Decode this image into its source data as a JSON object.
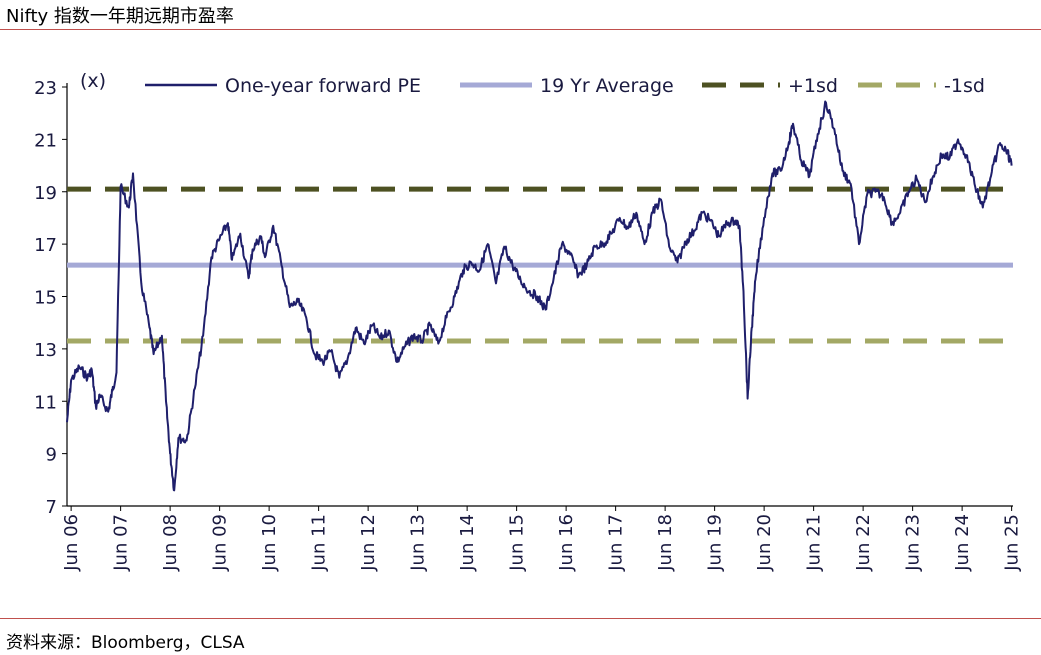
{
  "title": "Nifty 指数一年期远期市盈率",
  "source": "资料来源：Bloomberg，CLSA",
  "chart_data": {
    "type": "line",
    "unit_label": "(x)",
    "ylim": [
      7,
      23
    ],
    "y_ticks": [
      "23",
      "21",
      "19",
      "17",
      "15",
      "13",
      "11",
      "9",
      "7"
    ],
    "x_ticks": [
      "Jun 06",
      "Jun 07",
      "Jun 08",
      "Jun 09",
      "Jun 10",
      "Jun 11",
      "Jun 12",
      "Jun 13",
      "Jun 14",
      "Jun 15",
      "Jun 16",
      "Jun 17",
      "Jun 18",
      "Jun 19",
      "Jun 20",
      "Jun 21",
      "Jun 22",
      "Jun 23",
      "Jun 24",
      "Jun 25"
    ],
    "legend_placement": "top",
    "series": [
      {
        "name": "One-year forward PE",
        "color": "#1f1f6b",
        "points": [
          [
            "2006-06",
            10.2
          ],
          [
            "2006-07",
            11.8
          ],
          [
            "2006-09",
            12.3
          ],
          [
            "2006-11",
            11.9
          ],
          [
            "2006-12",
            12.2
          ],
          [
            "2007-01",
            10.8
          ],
          [
            "2007-02",
            11.2
          ],
          [
            "2007-04",
            10.6
          ],
          [
            "2007-05",
            11.4
          ],
          [
            "2007-06",
            12.1
          ],
          [
            "2007-07",
            19.2
          ],
          [
            "2007-09",
            18.4
          ],
          [
            "2007-10",
            19.7
          ],
          [
            "2007-12",
            15.5
          ],
          [
            "2008-02",
            13.8
          ],
          [
            "2008-03",
            12.8
          ],
          [
            "2008-05",
            13.5
          ],
          [
            "2008-06",
            11.0
          ],
          [
            "2008-07",
            9.0
          ],
          [
            "2008-08",
            7.6
          ],
          [
            "2008-09",
            9.6
          ],
          [
            "2008-11",
            9.5
          ],
          [
            "2009-01",
            11.5
          ],
          [
            "2009-03",
            13.5
          ],
          [
            "2009-05",
            16.5
          ],
          [
            "2009-07",
            17.2
          ],
          [
            "2009-09",
            17.8
          ],
          [
            "2009-10",
            16.4
          ],
          [
            "2009-12",
            17.4
          ],
          [
            "2010-02",
            15.7
          ],
          [
            "2010-03",
            16.8
          ],
          [
            "2010-05",
            17.3
          ],
          [
            "2010-06",
            16.5
          ],
          [
            "2010-08",
            17.7
          ],
          [
            "2010-10",
            16.2
          ],
          [
            "2010-12",
            14.6
          ],
          [
            "2011-02",
            14.8
          ],
          [
            "2011-04",
            14.2
          ],
          [
            "2011-06",
            12.8
          ],
          [
            "2011-08",
            12.5
          ],
          [
            "2011-10",
            12.9
          ],
          [
            "2011-12",
            11.9
          ],
          [
            "2012-02",
            12.6
          ],
          [
            "2012-04",
            13.8
          ],
          [
            "2012-06",
            13.2
          ],
          [
            "2012-08",
            13.9
          ],
          [
            "2012-10",
            13.4
          ],
          [
            "2012-12",
            13.7
          ],
          [
            "2013-02",
            12.5
          ],
          [
            "2013-04",
            13.1
          ],
          [
            "2013-06",
            13.5
          ],
          [
            "2013-08",
            13.3
          ],
          [
            "2013-10",
            13.9
          ],
          [
            "2013-12",
            13.2
          ],
          [
            "2014-02",
            14.2
          ],
          [
            "2014-04",
            15.0
          ],
          [
            "2014-06",
            16.0
          ],
          [
            "2014-08",
            16.3
          ],
          [
            "2014-10",
            16.0
          ],
          [
            "2014-12",
            17.0
          ],
          [
            "2015-02",
            15.5
          ],
          [
            "2015-04",
            16.9
          ],
          [
            "2015-06",
            16.2
          ],
          [
            "2015-08",
            15.6
          ],
          [
            "2015-10",
            15.2
          ],
          [
            "2015-12",
            15.0
          ],
          [
            "2016-02",
            14.5
          ],
          [
            "2016-04",
            15.7
          ],
          [
            "2016-06",
            17.0
          ],
          [
            "2016-08",
            16.6
          ],
          [
            "2016-10",
            15.8
          ],
          [
            "2016-12",
            16.2
          ],
          [
            "2017-02",
            16.9
          ],
          [
            "2017-04",
            17.0
          ],
          [
            "2017-06",
            17.4
          ],
          [
            "2017-08",
            18.0
          ],
          [
            "2017-10",
            17.6
          ],
          [
            "2017-12",
            18.2
          ],
          [
            "2018-02",
            17.0
          ],
          [
            "2018-04",
            18.2
          ],
          [
            "2018-06",
            18.7
          ],
          [
            "2018-08",
            16.9
          ],
          [
            "2018-10",
            16.3
          ],
          [
            "2018-12",
            17.1
          ],
          [
            "2019-02",
            17.5
          ],
          [
            "2019-04",
            18.2
          ],
          [
            "2019-06",
            17.9
          ],
          [
            "2019-08",
            17.3
          ],
          [
            "2019-10",
            17.8
          ],
          [
            "2019-12",
            17.9
          ],
          [
            "2020-01",
            17.7
          ],
          [
            "2020-02",
            15.2
          ],
          [
            "2020-03",
            11.1
          ],
          [
            "2020-04",
            13.8
          ],
          [
            "2020-05",
            15.8
          ],
          [
            "2020-07",
            18.0
          ],
          [
            "2020-09",
            19.7
          ],
          [
            "2020-11",
            19.8
          ],
          [
            "2021-01",
            20.9
          ],
          [
            "2021-02",
            21.6
          ],
          [
            "2021-04",
            20.2
          ],
          [
            "2021-06",
            19.6
          ],
          [
            "2021-08",
            21.2
          ],
          [
            "2021-10",
            22.4
          ],
          [
            "2021-12",
            21.4
          ],
          [
            "2022-02",
            19.8
          ],
          [
            "2022-04",
            19.3
          ],
          [
            "2022-06",
            17.0
          ],
          [
            "2022-08",
            18.9
          ],
          [
            "2022-10",
            19.0
          ],
          [
            "2022-12",
            18.8
          ],
          [
            "2023-02",
            17.8
          ],
          [
            "2023-04",
            18.2
          ],
          [
            "2023-06",
            19.0
          ],
          [
            "2023-08",
            19.5
          ],
          [
            "2023-10",
            18.6
          ],
          [
            "2023-12",
            19.6
          ],
          [
            "2024-02",
            20.4
          ],
          [
            "2024-04",
            20.3
          ],
          [
            "2024-06",
            21.0
          ],
          [
            "2024-08",
            20.4
          ],
          [
            "2024-10",
            19.3
          ],
          [
            "2024-12",
            18.4
          ],
          [
            "2025-02",
            19.6
          ],
          [
            "2025-04",
            20.8
          ],
          [
            "2025-06",
            20.5
          ],
          [
            "2025-07",
            20.0
          ]
        ]
      },
      {
        "name": "19 Yr Average",
        "color": "#a5a9d6",
        "value": 16.2
      },
      {
        "name": "+1sd",
        "color": "#4d5122",
        "value": 19.1
      },
      {
        "name": "-1sd",
        "color": "#a3a865",
        "value": 13.3
      }
    ]
  }
}
